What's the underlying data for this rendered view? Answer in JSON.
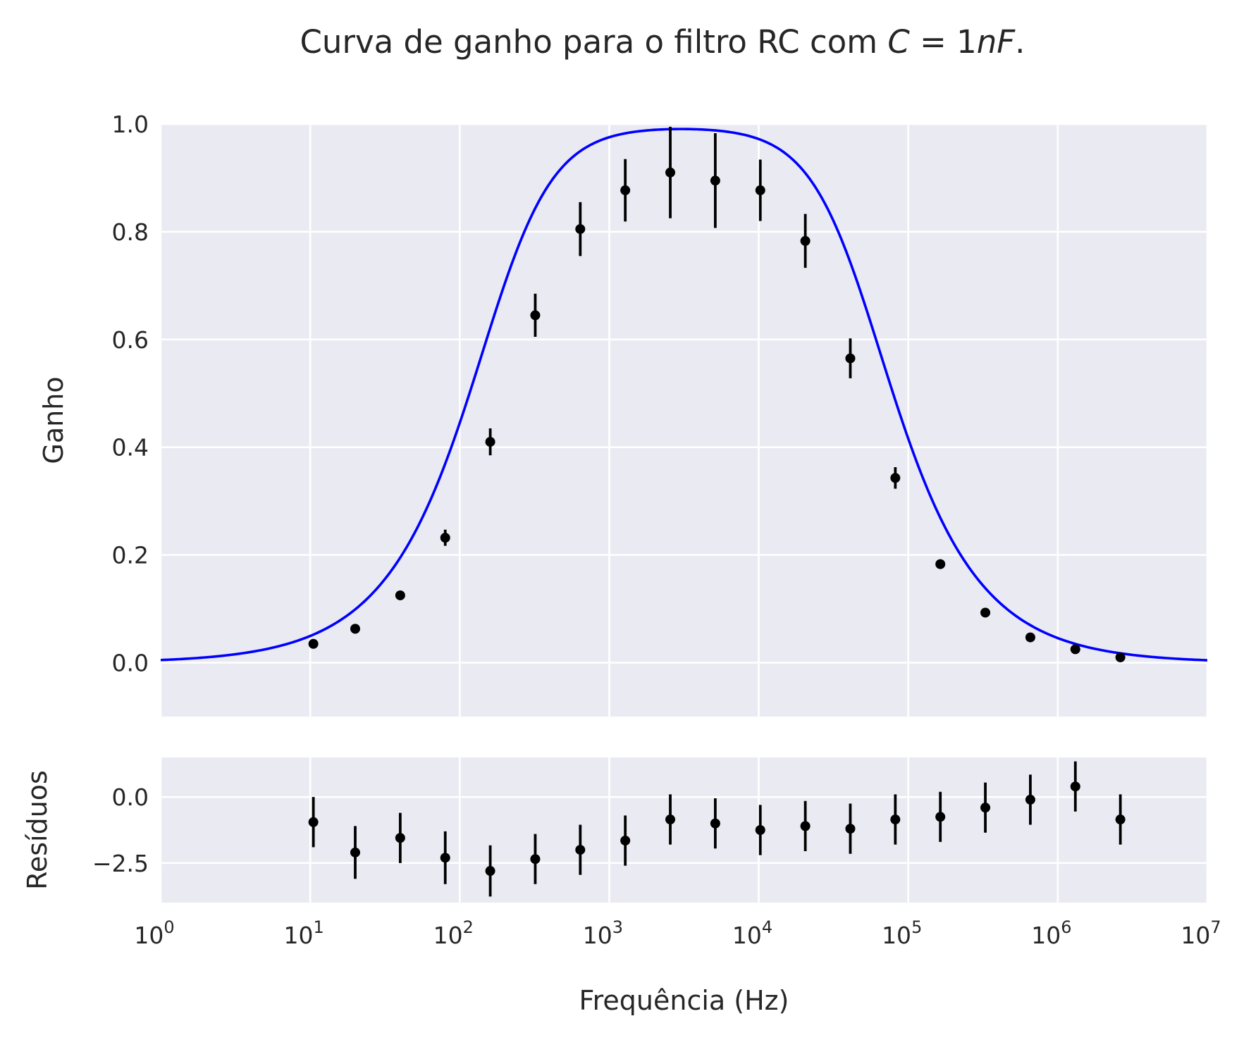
{
  "title": "Curva de ganho para o filtro RC com C = 1nF.",
  "colors": {
    "background": "#eaeaf2",
    "grid": "#ffffff",
    "fit_line": "#0000ff",
    "markers": "#000000",
    "text": "#262626"
  },
  "chart_data": [
    {
      "type": "scatter",
      "panel": "main",
      "title": "Curva de ganho para o filtro RC com C = 1nF.",
      "xlabel": "",
      "ylabel": "Ganho",
      "xscale": "log",
      "xlim": [
        1,
        10000000
      ],
      "ylim": [
        -0.1,
        1.0
      ],
      "yticks": [
        "0.0",
        "0.2",
        "0.4",
        "0.6",
        "0.8",
        "1.0"
      ],
      "grid": true,
      "legend": "none",
      "x": [
        10.5,
        20,
        40,
        80,
        160,
        320,
        640,
        1280,
        2560,
        5120,
        10240,
        20480,
        40960,
        81920,
        163840,
        327680,
        655360,
        1310720,
        2621440
      ],
      "y": [
        0.035,
        0.063,
        0.125,
        0.232,
        0.41,
        0.645,
        0.805,
        0.877,
        0.91,
        0.895,
        0.877,
        0.783,
        0.565,
        0.343,
        0.183,
        0.093,
        0.047,
        0.025,
        0.01
      ],
      "yerr": [
        0.003,
        0.004,
        0.005,
        0.015,
        0.025,
        0.04,
        0.05,
        0.058,
        0.085,
        0.088,
        0.057,
        0.05,
        0.037,
        0.02,
        0.007,
        0.004,
        0.003,
        0.003,
        0.003
      ],
      "fit_curve": {
        "model": "band-pass RC",
        "f_low_hz": 200,
        "f_high_hz": 46000,
        "peak_gain": 0.995
      }
    },
    {
      "type": "scatter",
      "panel": "residuals",
      "xlabel": "Frequência (Hz)",
      "ylabel": "Resíduos",
      "xscale": "log",
      "xlim": [
        1,
        10000000
      ],
      "ylim": [
        -4.0,
        1.5
      ],
      "yticks": [
        "0.0",
        "−2.5"
      ],
      "xticks": [
        "10^0",
        "10^1",
        "10^2",
        "10^3",
        "10^4",
        "10^5",
        "10^6",
        "10^7"
      ],
      "grid": true,
      "x": [
        10.5,
        20,
        40,
        80,
        160,
        320,
        640,
        1280,
        2560,
        5120,
        10240,
        20480,
        40960,
        81920,
        163840,
        327680,
        655360,
        1310720,
        2621440
      ],
      "y": [
        -0.95,
        -2.1,
        -1.55,
        -2.3,
        -2.8,
        -2.35,
        -2.0,
        -1.65,
        -0.85,
        -1.0,
        -1.25,
        -1.1,
        -1.2,
        -0.85,
        -0.75,
        -0.4,
        -0.1,
        0.4,
        -0.85
      ],
      "yerr": [
        0.95,
        1.0,
        0.95,
        1.0,
        0.97,
        0.95,
        0.95,
        0.95,
        0.95,
        0.95,
        0.95,
        0.95,
        0.95,
        0.95,
        0.95,
        0.95,
        0.95,
        0.95,
        0.95
      ]
    }
  ]
}
